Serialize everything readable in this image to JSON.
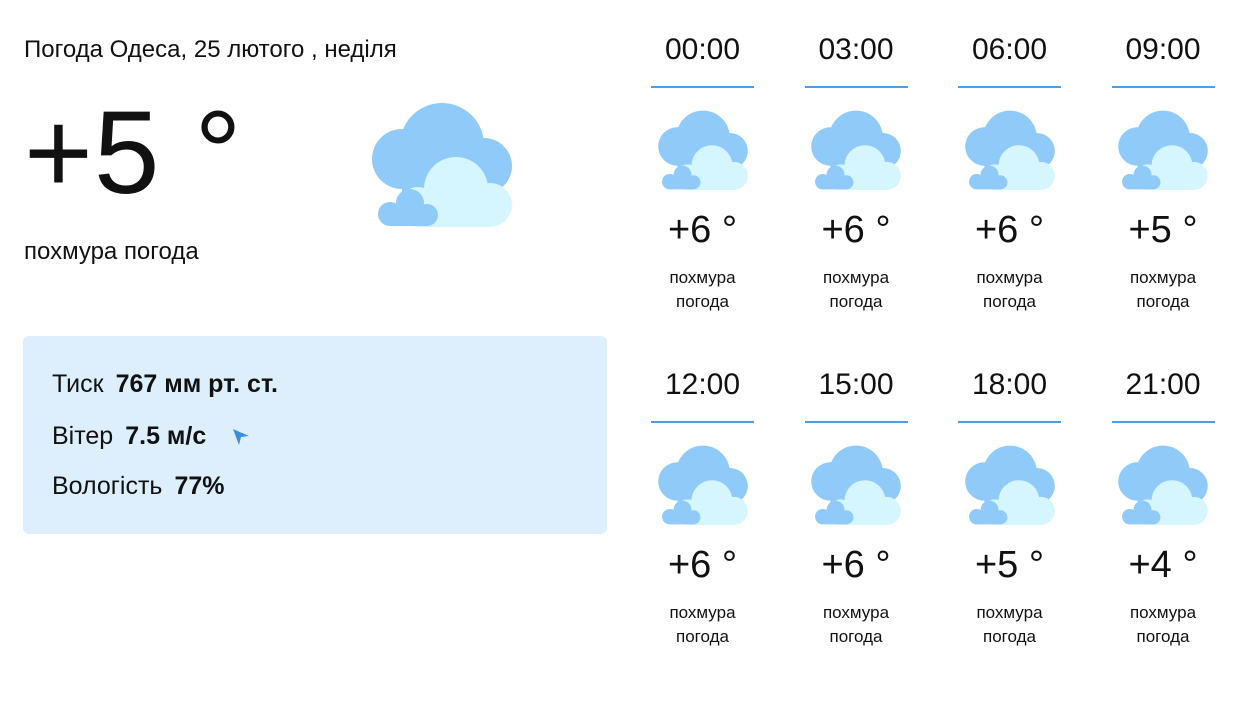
{
  "header": {
    "title": "Погода Одеса, 25 лютого , неділя"
  },
  "current": {
    "temp": "+5 °",
    "description": "похмура погода",
    "icon": "cloudy-icon"
  },
  "details": {
    "pressure_label": "Тиск",
    "pressure_value": "767 мм рт. ст.",
    "wind_label": "Вітер",
    "wind_value": "7.5 м/с",
    "wind_icon": "wind-direction-arrow-icon",
    "humidity_label": "Вологість",
    "humidity_value": "77%"
  },
  "colors": {
    "accent": "#4a9fe8",
    "panel": "#ddeffc",
    "cloud_back": "#90caf9",
    "cloud_front": "#d5f6ff"
  },
  "hourly": [
    {
      "time": "00:00",
      "temp": "+6 °",
      "d1": "похмура",
      "d2": "погода"
    },
    {
      "time": "03:00",
      "temp": "+6 °",
      "d1": "похмура",
      "d2": "погода"
    },
    {
      "time": "06:00",
      "temp": "+6 °",
      "d1": "похмура",
      "d2": "погода"
    },
    {
      "time": "09:00",
      "temp": "+5 °",
      "d1": "похмура",
      "d2": "погода"
    },
    {
      "time": "12:00",
      "temp": "+6 °",
      "d1": "похмура",
      "d2": "погода"
    },
    {
      "time": "15:00",
      "temp": "+6 °",
      "d1": "похмура",
      "d2": "погода"
    },
    {
      "time": "18:00",
      "temp": "+5 °",
      "d1": "похмура",
      "d2": "погода"
    },
    {
      "time": "21:00",
      "temp": "+4 °",
      "d1": "похмура",
      "d2": "погода"
    }
  ]
}
